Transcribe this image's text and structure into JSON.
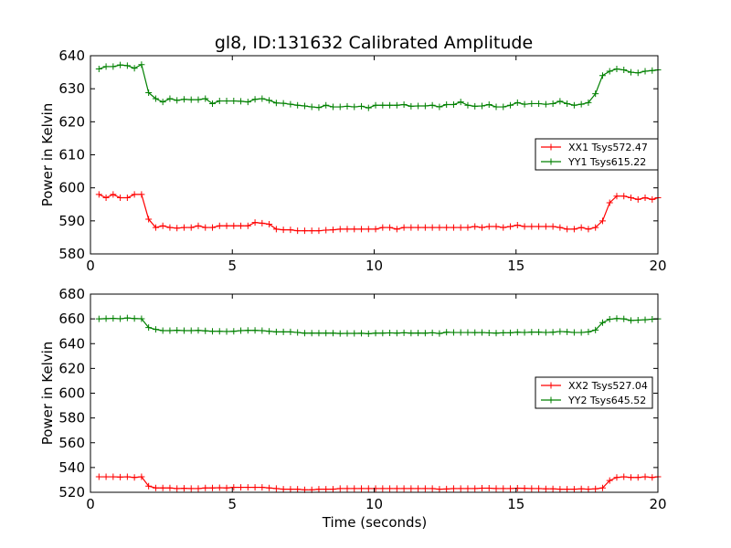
{
  "chart_data": {
    "title": "gl8, ID:131632 Calibrated Amplitude",
    "xlabel": "Time (seconds)",
    "panels": [
      {
        "type": "line",
        "ylabel": "Power in Kelvin",
        "xlim": [
          0,
          20
        ],
        "ylim": [
          580,
          640
        ],
        "xticks": [
          0,
          5,
          10,
          15,
          20
        ],
        "yticks": [
          580,
          590,
          600,
          610,
          620,
          630,
          640
        ],
        "legend_position": "right",
        "series": [
          {
            "name": "XX1 Tsys572.47",
            "color": "#ff0000",
            "x": [
              0.3,
              0.55,
              0.8,
              1.05,
              1.3,
              1.55,
              1.8,
              2.05,
              2.3,
              2.55,
              2.8,
              3.05,
              3.3,
              3.55,
              3.8,
              4.05,
              4.3,
              4.55,
              4.8,
              5.05,
              5.3,
              5.55,
              5.8,
              6.05,
              6.3,
              6.55,
              6.8,
              7.05,
              7.3,
              7.55,
              7.8,
              8.05,
              8.3,
              8.55,
              8.8,
              9.05,
              9.3,
              9.55,
              9.8,
              10.05,
              10.3,
              10.55,
              10.8,
              11.05,
              11.3,
              11.55,
              11.8,
              12.05,
              12.3,
              12.55,
              12.8,
              13.05,
              13.3,
              13.55,
              13.8,
              14.05,
              14.3,
              14.55,
              14.8,
              15.05,
              15.3,
              15.55,
              15.8,
              16.05,
              16.3,
              16.55,
              16.8,
              17.05,
              17.3,
              17.55,
              17.8,
              18.05,
              18.3,
              18.55,
              18.8,
              19.05,
              19.3,
              19.55,
              19.8,
              20.0
            ],
            "y": [
              598,
              597,
              598,
              597,
              597,
              598,
              598,
              590.5,
              588,
              588.5,
              588,
              587.8,
              588,
              588,
              588.5,
              588,
              588,
              588.5,
              588.5,
              588.5,
              588.5,
              588.5,
              589.5,
              589.3,
              589,
              587.5,
              587.3,
              587.3,
              587,
              587,
              587,
              587,
              587.2,
              587.3,
              587.5,
              587.5,
              587.5,
              587.5,
              587.5,
              587.5,
              588,
              588,
              587.5,
              588,
              588,
              588,
              588,
              588,
              588,
              588,
              588,
              588,
              588,
              588.3,
              588,
              588.3,
              588.3,
              588,
              588.3,
              588.7,
              588.3,
              588.3,
              588.3,
              588.3,
              588.3,
              588,
              587.5,
              587.5,
              588,
              587.5,
              588,
              590,
              595.5,
              597.5,
              597.5,
              597,
              596.5,
              597,
              596.5,
              597
            ]
          },
          {
            "name": "YY1 Tsys615.22",
            "color": "#008000",
            "x": [
              0.3,
              0.55,
              0.8,
              1.05,
              1.3,
              1.55,
              1.8,
              2.05,
              2.3,
              2.55,
              2.8,
              3.05,
              3.3,
              3.55,
              3.8,
              4.05,
              4.3,
              4.55,
              4.8,
              5.05,
              5.3,
              5.55,
              5.8,
              6.05,
              6.3,
              6.55,
              6.8,
              7.05,
              7.3,
              7.55,
              7.8,
              8.05,
              8.3,
              8.55,
              8.8,
              9.05,
              9.3,
              9.55,
              9.8,
              10.05,
              10.3,
              10.55,
              10.8,
              11.05,
              11.3,
              11.55,
              11.8,
              12.05,
              12.3,
              12.55,
              12.8,
              13.05,
              13.3,
              13.55,
              13.8,
              14.05,
              14.3,
              14.55,
              14.8,
              15.05,
              15.3,
              15.55,
              15.8,
              16.05,
              16.3,
              16.55,
              16.8,
              17.05,
              17.3,
              17.55,
              17.8,
              18.05,
              18.3,
              18.55,
              18.8,
              19.05,
              19.3,
              19.55,
              19.8,
              20.0
            ],
            "y": [
              636,
              636.7,
              636.7,
              637.2,
              637,
              636.2,
              637.3,
              628.8,
              627,
              626,
              627,
              626.5,
              626.8,
              626.7,
              626.7,
              627,
              625.5,
              626.3,
              626.3,
              626.3,
              626.2,
              626,
              626.8,
              627,
              626.5,
              625.7,
              625.6,
              625.3,
              625,
              624.8,
              624.5,
              624.3,
              625,
              624.5,
              624.5,
              624.7,
              624.5,
              624.7,
              624.2,
              625,
              625,
              625,
              625,
              625.2,
              624.7,
              624.8,
              624.8,
              625,
              624.5,
              625.2,
              625.2,
              626,
              625,
              624.7,
              624.8,
              625.2,
              624.5,
              624.5,
              625,
              625.8,
              625.3,
              625.5,
              625.5,
              625.3,
              625.5,
              626.2,
              625.5,
              625,
              625.3,
              625.8,
              628.5,
              634,
              635.3,
              636,
              635.7,
              635,
              634.8,
              635.3,
              635.5,
              635.7
            ]
          }
        ]
      },
      {
        "type": "line",
        "ylabel": "Power in Kelvin",
        "xlim": [
          0,
          20
        ],
        "ylim": [
          520,
          680
        ],
        "xticks": [
          0,
          5,
          10,
          15,
          20
        ],
        "yticks": [
          520,
          540,
          560,
          580,
          600,
          620,
          640,
          660,
          680
        ],
        "legend_position": "right",
        "series": [
          {
            "name": "XX2 Tsys527.04",
            "color": "#ff0000",
            "x": [
              0.3,
              0.55,
              0.8,
              1.05,
              1.3,
              1.55,
              1.8,
              2.05,
              2.3,
              2.55,
              2.8,
              3.05,
              3.3,
              3.55,
              3.8,
              4.05,
              4.3,
              4.55,
              4.8,
              5.05,
              5.3,
              5.55,
              5.8,
              6.05,
              6.3,
              6.55,
              6.8,
              7.05,
              7.3,
              7.55,
              7.8,
              8.05,
              8.3,
              8.55,
              8.8,
              9.05,
              9.3,
              9.55,
              9.8,
              10.05,
              10.3,
              10.55,
              10.8,
              11.05,
              11.3,
              11.55,
              11.8,
              12.05,
              12.3,
              12.55,
              12.8,
              13.05,
              13.3,
              13.55,
              13.8,
              14.05,
              14.3,
              14.55,
              14.8,
              15.05,
              15.3,
              15.55,
              15.8,
              16.05,
              16.3,
              16.55,
              16.8,
              17.05,
              17.3,
              17.55,
              17.8,
              18.05,
              18.3,
              18.55,
              18.8,
              19.05,
              19.3,
              19.55,
              19.8,
              20.0
            ],
            "y": [
              532.5,
              532.5,
              532.5,
              532.3,
              532.5,
              532,
              532.5,
              525,
              523.5,
              523.5,
              523.5,
              523,
              523.2,
              523,
              523,
              523.5,
              523.5,
              523.7,
              523.5,
              524,
              524,
              524,
              524,
              524,
              523.5,
              523,
              522.5,
              522.5,
              522.5,
              522,
              522,
              522.5,
              522.5,
              522.5,
              523,
              523,
              523,
              523,
              523,
              523,
              523,
              523,
              523,
              523,
              523,
              523,
              523,
              523,
              522.5,
              522.7,
              523,
              523,
              523,
              523,
              523.3,
              523.3,
              523,
              523,
              523,
              523.3,
              523.2,
              523,
              523,
              522.8,
              522.8,
              522.5,
              522.5,
              522.5,
              522.8,
              522.5,
              522.8,
              523.5,
              529.5,
              532,
              532.5,
              532,
              532,
              532.5,
              532,
              532.5
            ]
          },
          {
            "name": "YY2 Tsys645.52",
            "color": "#008000",
            "x": [
              0.3,
              0.55,
              0.8,
              1.05,
              1.3,
              1.55,
              1.8,
              2.05,
              2.3,
              2.55,
              2.8,
              3.05,
              3.3,
              3.55,
              3.8,
              4.05,
              4.3,
              4.55,
              4.8,
              5.05,
              5.3,
              5.55,
              5.8,
              6.05,
              6.3,
              6.55,
              6.8,
              7.05,
              7.3,
              7.55,
              7.8,
              8.05,
              8.3,
              8.55,
              8.8,
              9.05,
              9.3,
              9.55,
              9.8,
              10.05,
              10.3,
              10.55,
              10.8,
              11.05,
              11.3,
              11.55,
              11.8,
              12.05,
              12.3,
              12.55,
              12.8,
              13.05,
              13.3,
              13.55,
              13.8,
              14.05,
              14.3,
              14.55,
              14.8,
              15.05,
              15.3,
              15.55,
              15.8,
              16.05,
              16.3,
              16.55,
              16.8,
              17.05,
              17.3,
              17.55,
              17.8,
              18.05,
              18.3,
              18.55,
              18.8,
              19.05,
              19.3,
              19.55,
              19.8,
              20.0
            ],
            "y": [
              660,
              660.2,
              660.4,
              660.1,
              660.7,
              660.3,
              660.1,
              653,
              651.5,
              650.5,
              650.5,
              650.8,
              650.5,
              650.5,
              650.7,
              650.3,
              650,
              650,
              649.8,
              650,
              650.5,
              650.7,
              650.7,
              650.5,
              650,
              649.5,
              649.5,
              649.5,
              649,
              648.5,
              648.5,
              648.5,
              648.5,
              648.5,
              648.2,
              648.3,
              648.3,
              648.4,
              648,
              648.5,
              648.5,
              648.7,
              648.5,
              648.8,
              648.5,
              648.6,
              648.5,
              648.8,
              648.2,
              649.2,
              649,
              649,
              649,
              648.9,
              649,
              648.7,
              648.5,
              648.8,
              648.8,
              649.2,
              649,
              649.3,
              649.3,
              649,
              649.2,
              649.8,
              649.5,
              649,
              649,
              649.5,
              651,
              657,
              659.7,
              660.3,
              660,
              658.7,
              659,
              659.3,
              659.7,
              660
            ]
          }
        ]
      }
    ]
  }
}
